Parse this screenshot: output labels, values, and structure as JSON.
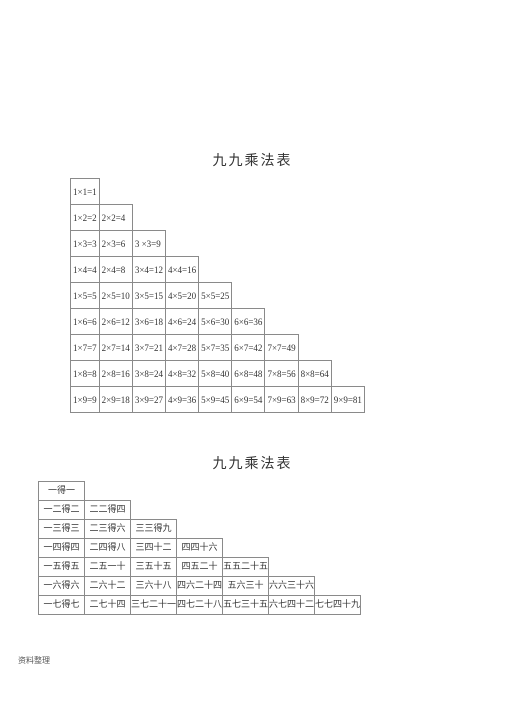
{
  "title1": "九九乘法表",
  "title2": "九九乘法表",
  "footer": "资料整理",
  "cell_border": "#8a8a8a",
  "background": "#ffffff",
  "table1": {
    "type": "table",
    "rows": [
      [
        "1×1=1"
      ],
      [
        "1×2=2",
        "2×2=4"
      ],
      [
        "1×3=3",
        "2×3=6",
        "3 ×3=9"
      ],
      [
        "1×4=4",
        "2×4=8",
        "3×4=12",
        "4×4=16"
      ],
      [
        "1×5=5",
        "2×5=10",
        "3×5=15",
        "4×5=20",
        "5×5=25"
      ],
      [
        "1×6=6",
        "2×6=12",
        "3×6=18",
        "4×6=24",
        "5×6=30",
        "6×6=36"
      ],
      [
        "1×7=7",
        "2×7=14",
        "3×7=21",
        "4×7=28",
        "5×7=35",
        "6×7=42",
        "7×7=49"
      ],
      [
        "1×8=8",
        "2×8=16",
        "3×8=24",
        "4×8=32",
        "5×8=40",
        "6×8=48",
        "7×8=56",
        "8×8=64"
      ],
      [
        "1×9=9",
        "2×9=18",
        "3×9=27",
        "4×9=36",
        "5×9=45",
        "6×9=54",
        "7×9=63",
        "8×9=72",
        "9×9=81"
      ]
    ],
    "max_cols": 9
  },
  "table2": {
    "type": "table",
    "rows": [
      [
        "一得一"
      ],
      [
        "一二得二",
        "二二得四"
      ],
      [
        "一三得三",
        "二三得六",
        "三三得九"
      ],
      [
        "一四得四",
        "二四得八",
        "三四十二",
        "四四十六"
      ],
      [
        "一五得五",
        "二五一十",
        "三五十五",
        "四五二十",
        "五五二十五"
      ],
      [
        "一六得六",
        "二六十二",
        "三六十八",
        "四六二十四",
        "五六三十",
        "六六三十六"
      ],
      [
        "一七得七",
        "二七十四",
        "三七二十一",
        "四七二十八",
        "五七三十五",
        "六七四十二",
        "七七四十九"
      ]
    ],
    "max_cols": 7
  }
}
